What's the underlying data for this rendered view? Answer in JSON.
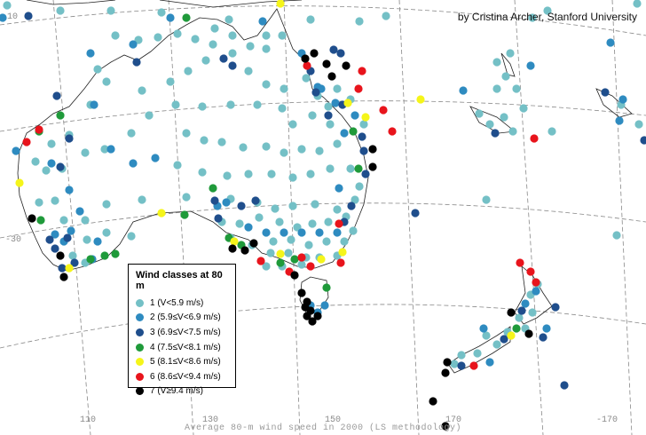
{
  "credit": "by Cristina Archer, Stanford University",
  "caption": "Average 80-m wind speed in 2000 (LS methodology)",
  "axis_labels": {
    "lat_10": "10",
    "lat_30": "-30",
    "lon_110": "110",
    "lon_130": "130",
    "lon_150": "150",
    "lon_170": "170",
    "lon_m170": "-170"
  },
  "legend": {
    "title": "Wind classes at 80 m",
    "classes": [
      {
        "label": "1 (V<5.9 m/s)",
        "color": "#74c0c6"
      },
      {
        "label": "2 (5.9≤V<6.9 m/s)",
        "color": "#2e8bc0"
      },
      {
        "label": "3 (6.9≤V<7.5 m/s)",
        "color": "#1f4e8c"
      },
      {
        "label": "4 (7.5≤V<8.1 m/s)",
        "color": "#1f9a3a"
      },
      {
        "label": "5 (8.1≤V<8.6 m/s)",
        "color": "#f5f51a"
      },
      {
        "label": "6 (8.6≤V<9.4 m/s)",
        "color": "#e8141c"
      },
      {
        "label": "7 (V≥9.4 m/s)",
        "color": "#000000"
      }
    ]
  }
}
